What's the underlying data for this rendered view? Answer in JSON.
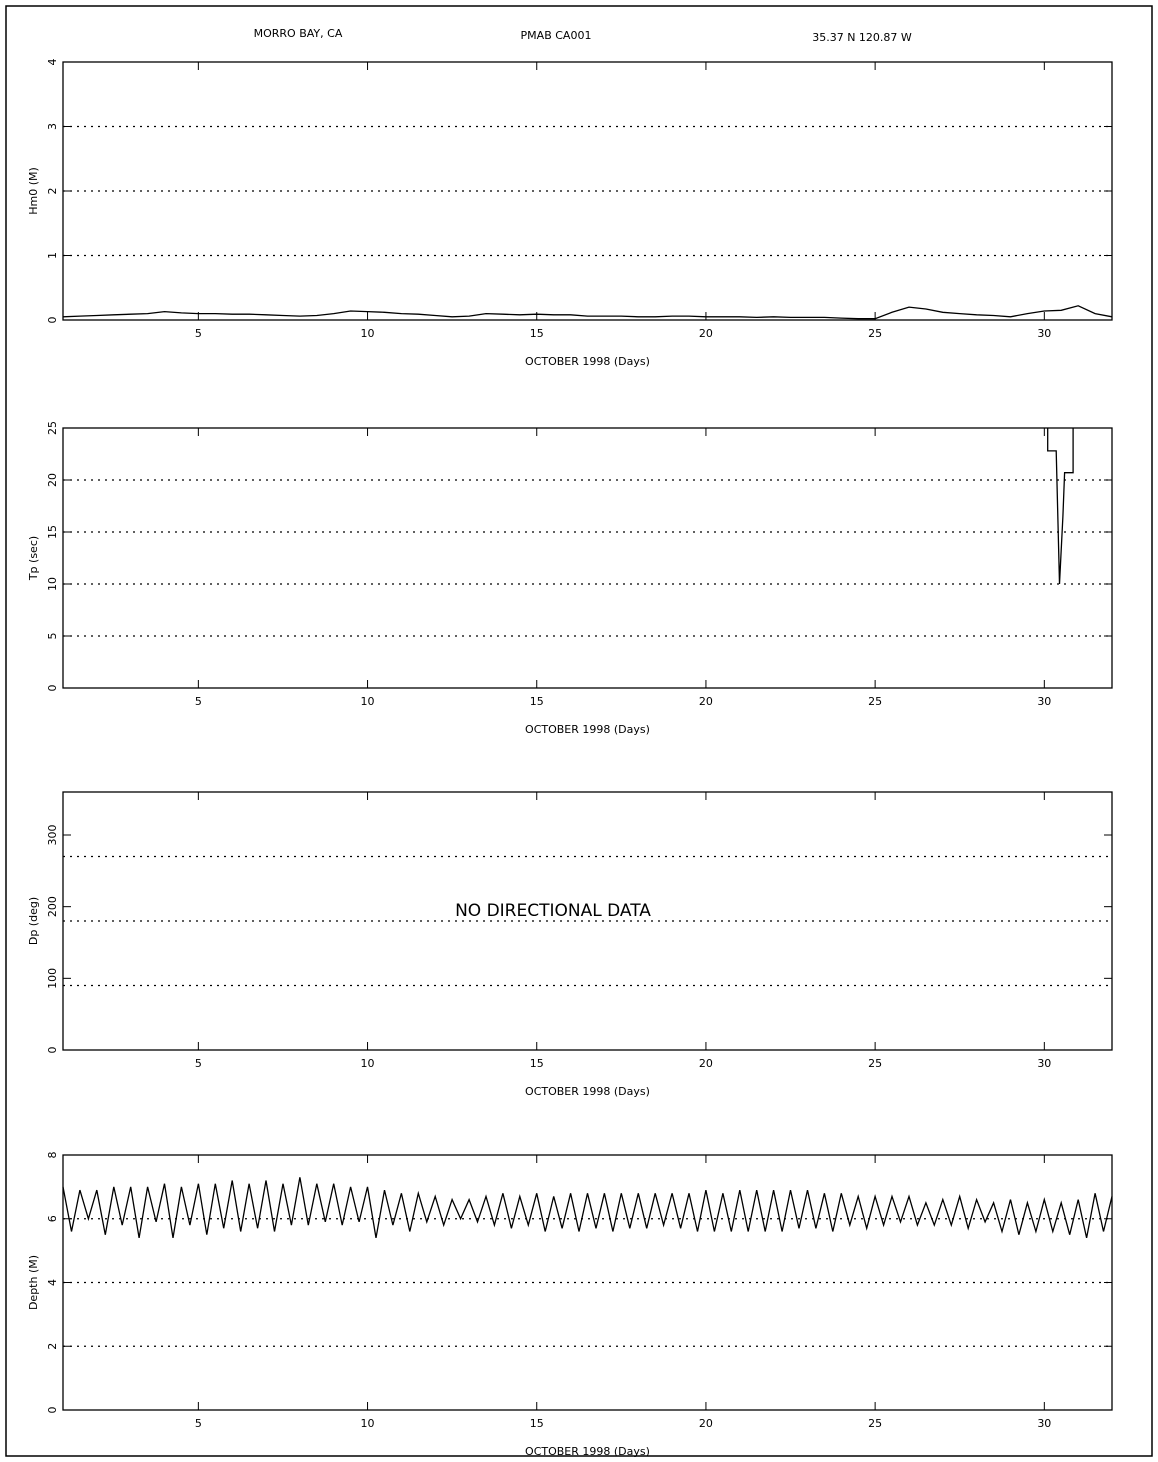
{
  "header": {
    "station": "MORRO BAY, CA",
    "code": "PMAB CA001",
    "location": "35.37 N 120.87 W"
  },
  "chart_data": [
    {
      "type": "line",
      "ylabel": "Hm0 (M)",
      "xlabel": "OCTOBER 1998 (Days)",
      "xlim": [
        1,
        32
      ],
      "ylim": [
        0,
        4
      ],
      "xticks": [
        5,
        10,
        15,
        20,
        25,
        30
      ],
      "yticks": [
        0,
        1,
        2,
        3,
        4
      ],
      "grid": true,
      "x": [
        1,
        1.5,
        2,
        2.5,
        3,
        3.5,
        4,
        4.5,
        5,
        5.5,
        6,
        6.5,
        7,
        7.5,
        8,
        8.5,
        9,
        9.5,
        10,
        10.5,
        11,
        11.5,
        12,
        12.5,
        13,
        13.5,
        14,
        14.5,
        15,
        15.5,
        16,
        16.5,
        17,
        17.5,
        18,
        18.5,
        19,
        19.5,
        20,
        20.5,
        21,
        21.5,
        22,
        22.5,
        23,
        23.5,
        24,
        24.5,
        25,
        25.5,
        26,
        26.5,
        27,
        27.5,
        28,
        28.5,
        29,
        29.5,
        30,
        30.5,
        31,
        31.5,
        32
      ],
      "series": [
        {
          "color": "#000000",
          "values": [
            0.05,
            0.06,
            0.07,
            0.08,
            0.09,
            0.1,
            0.13,
            0.11,
            0.1,
            0.1,
            0.09,
            0.09,
            0.08,
            0.07,
            0.06,
            0.07,
            0.1,
            0.14,
            0.13,
            0.12,
            0.1,
            0.09,
            0.07,
            0.05,
            0.06,
            0.1,
            0.09,
            0.08,
            0.09,
            0.08,
            0.08,
            0.06,
            0.06,
            0.06,
            0.05,
            0.05,
            0.06,
            0.06,
            0.05,
            0.05,
            0.05,
            0.04,
            0.05,
            0.04,
            0.04,
            0.04,
            0.03,
            0.02,
            0.02,
            0.12,
            0.2,
            0.17,
            0.12,
            0.1,
            0.08,
            0.07,
            0.05,
            0.1,
            0.14,
            0.15,
            0.22,
            0.1,
            0.05
          ]
        }
      ]
    },
    {
      "type": "line",
      "ylabel": "Tp (sec)",
      "xlabel": "OCTOBER 1998 (Days)",
      "xlim": [
        1,
        32
      ],
      "ylim": [
        0,
        25
      ],
      "xticks": [
        5,
        10,
        15,
        20,
        25,
        30
      ],
      "yticks": [
        0,
        5,
        10,
        15,
        20,
        25
      ],
      "grid": true,
      "x": [
        30.1,
        30.1,
        30.35,
        30.45,
        30.55,
        30.6,
        30.6,
        30.85,
        30.85
      ],
      "series": [
        {
          "color": "#000000",
          "values": [
            25,
            22.8,
            22.8,
            10,
            16.5,
            20.7,
            20.7,
            20.7,
            25
          ]
        }
      ]
    },
    {
      "type": "line",
      "ylabel": "Dp (deg)",
      "xlabel": "OCTOBER 1998 (Days)",
      "xlim": [
        1,
        32
      ],
      "ylim": [
        0,
        360
      ],
      "xticks": [
        5,
        10,
        15,
        20,
        25,
        30
      ],
      "yticks": [
        0,
        100,
        200,
        300
      ],
      "grid_lines": [
        90,
        180,
        270
      ],
      "annotation": "NO DIRECTIONAL DATA",
      "series": []
    },
    {
      "type": "line",
      "ylabel": "Depth (M)",
      "xlabel": "OCTOBER 1998 (Days)",
      "xlim": [
        1,
        32
      ],
      "ylim": [
        0,
        8
      ],
      "xticks": [
        5,
        10,
        15,
        20,
        25,
        30
      ],
      "yticks": [
        0,
        2,
        4,
        6,
        8
      ],
      "grid": true,
      "x": [
        1,
        1.25,
        1.5,
        1.75,
        2,
        2.25,
        2.5,
        2.75,
        3,
        3.25,
        3.5,
        3.75,
        4,
        4.25,
        4.5,
        4.75,
        5,
        5.25,
        5.5,
        5.75,
        6,
        6.25,
        6.5,
        6.75,
        7,
        7.25,
        7.5,
        7.75,
        8,
        8.25,
        8.5,
        8.75,
        9,
        9.25,
        9.5,
        9.75,
        10,
        10.25,
        10.5,
        10.75,
        11,
        11.25,
        11.5,
        11.75,
        12,
        12.25,
        12.5,
        12.75,
        13,
        13.25,
        13.5,
        13.75,
        14,
        14.25,
        14.5,
        14.75,
        15,
        15.25,
        15.5,
        15.75,
        16,
        16.25,
        16.5,
        16.75,
        17,
        17.25,
        17.5,
        17.75,
        18,
        18.25,
        18.5,
        18.75,
        19,
        19.25,
        19.5,
        19.75,
        20,
        20.25,
        20.5,
        20.75,
        21,
        21.25,
        21.5,
        21.75,
        22,
        22.25,
        22.5,
        22.75,
        23,
        23.25,
        23.5,
        23.75,
        24,
        24.25,
        24.5,
        24.75,
        25,
        25.25,
        25.5,
        25.75,
        26,
        26.25,
        26.5,
        26.75,
        27,
        27.25,
        27.5,
        27.75,
        28,
        28.25,
        28.5,
        28.75,
        29,
        29.25,
        29.5,
        29.75,
        30,
        30.25,
        30.5,
        30.75,
        31,
        31.25,
        31.5,
        31.75,
        32
      ],
      "series": [
        {
          "color": "#000000",
          "values": [
            7.0,
            5.6,
            6.9,
            6.0,
            6.9,
            5.5,
            7.0,
            5.8,
            7.0,
            5.4,
            7.0,
            5.9,
            7.1,
            5.4,
            7.0,
            5.8,
            7.1,
            5.5,
            7.1,
            5.7,
            7.2,
            5.6,
            7.1,
            5.7,
            7.2,
            5.6,
            7.1,
            5.8,
            7.3,
            5.8,
            7.1,
            5.9,
            7.1,
            5.8,
            7.0,
            5.9,
            7.0,
            5.4,
            6.9,
            5.8,
            6.8,
            5.6,
            6.8,
            5.9,
            6.7,
            5.8,
            6.6,
            6.0,
            6.6,
            5.9,
            6.7,
            5.8,
            6.8,
            5.7,
            6.7,
            5.8,
            6.8,
            5.6,
            6.7,
            5.7,
            6.8,
            5.6,
            6.8,
            5.7,
            6.8,
            5.6,
            6.8,
            5.7,
            6.8,
            5.7,
            6.8,
            5.8,
            6.8,
            5.7,
            6.8,
            5.6,
            6.9,
            5.6,
            6.8,
            5.6,
            6.9,
            5.6,
            6.9,
            5.6,
            6.9,
            5.6,
            6.9,
            5.7,
            6.9,
            5.7,
            6.8,
            5.6,
            6.8,
            5.8,
            6.7,
            5.7,
            6.7,
            5.8,
            6.7,
            5.9,
            6.7,
            5.8,
            6.5,
            5.8,
            6.6,
            5.8,
            6.7,
            5.7,
            6.6,
            5.9,
            6.5,
            5.6,
            6.6,
            5.5,
            6.5,
            5.6,
            6.6,
            5.6,
            6.5,
            5.5,
            6.6,
            5.4,
            6.8,
            5.6,
            6.7
          ]
        }
      ]
    }
  ]
}
